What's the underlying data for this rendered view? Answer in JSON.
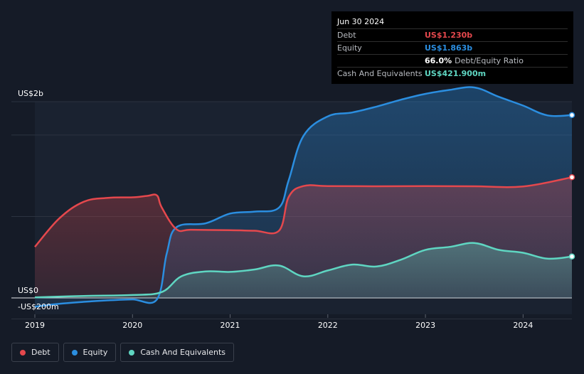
{
  "chart_data": {
    "type": "area",
    "y_axis_top_label": "US$2b",
    "y_axis_zero_label": "US$0",
    "y_axis_bottom_label": "-US$200m",
    "ylim": [
      -200,
      2000
    ],
    "xlim": [
      2019.0,
      2024.5
    ],
    "x_ticks": [
      {
        "value": 2019,
        "label": "2019"
      },
      {
        "value": 2020,
        "label": "2020"
      },
      {
        "value": 2021,
        "label": "2021"
      },
      {
        "value": 2022,
        "label": "2022"
      },
      {
        "value": 2023,
        "label": "2023"
      },
      {
        "value": 2024,
        "label": "2024"
      }
    ],
    "y_gridlines": [
      2000,
      1660,
      830,
      0,
      -200
    ],
    "series": [
      {
        "name": "Debt",
        "color": "#e5484d",
        "x": [
          2019.0,
          2019.25,
          2019.5,
          2019.75,
          2020.0,
          2020.15,
          2020.25,
          2020.3,
          2020.45,
          2020.6,
          2021.0,
          2021.25,
          2021.5,
          2021.6,
          2021.75,
          2022.0,
          2022.5,
          2023.0,
          2023.5,
          2024.0,
          2024.5
        ],
        "values": [
          520,
          810,
          980,
          1020,
          1025,
          1040,
          1045,
          920,
          700,
          695,
          690,
          685,
          685,
          1030,
          1140,
          1140,
          1138,
          1140,
          1138,
          1136,
          1230
        ]
      },
      {
        "name": "Equity",
        "color": "#2b8ee0",
        "x": [
          2019.0,
          2019.25,
          2019.5,
          2019.75,
          2020.0,
          2020.25,
          2020.35,
          2020.45,
          2020.75,
          2021.0,
          2021.25,
          2021.5,
          2021.6,
          2021.75,
          2022.0,
          2022.25,
          2022.5,
          2022.75,
          2023.0,
          2023.25,
          2023.5,
          2023.75,
          2024.0,
          2024.25,
          2024.5
        ],
        "values": [
          -90,
          -60,
          -40,
          -25,
          -15,
          -15,
          450,
          720,
          760,
          860,
          880,
          920,
          1200,
          1650,
          1850,
          1890,
          1950,
          2020,
          2080,
          2120,
          2145,
          2050,
          1960,
          1860,
          1863
        ]
      },
      {
        "name": "Cash And Equivalents",
        "color": "#5fd6c2",
        "x": [
          2019.0,
          2019.5,
          2020.0,
          2020.3,
          2020.5,
          2020.75,
          2021.0,
          2021.25,
          2021.5,
          2021.75,
          2022.0,
          2022.25,
          2022.5,
          2022.75,
          2023.0,
          2023.25,
          2023.5,
          2023.75,
          2024.0,
          2024.25,
          2024.5
        ],
        "values": [
          5,
          20,
          30,
          60,
          220,
          270,
          265,
          290,
          330,
          220,
          280,
          340,
          320,
          390,
          490,
          520,
          560,
          490,
          460,
          400,
          421.9
        ]
      }
    ]
  },
  "tooltip": {
    "date": "Jun 30 2024",
    "debt_label": "Debt",
    "debt_value": "US$1.230b",
    "equity_label": "Equity",
    "equity_value": "US$1.863b",
    "ratio_value": "66.0%",
    "ratio_suffix": "Debt/Equity Ratio",
    "cash_label": "Cash And Equivalents",
    "cash_value": "US$421.900m"
  },
  "legend": [
    {
      "label": "Debt",
      "color": "#e5484d"
    },
    {
      "label": "Equity",
      "color": "#2b8ee0"
    },
    {
      "label": "Cash And Equivalents",
      "color": "#5fd6c2"
    }
  ]
}
